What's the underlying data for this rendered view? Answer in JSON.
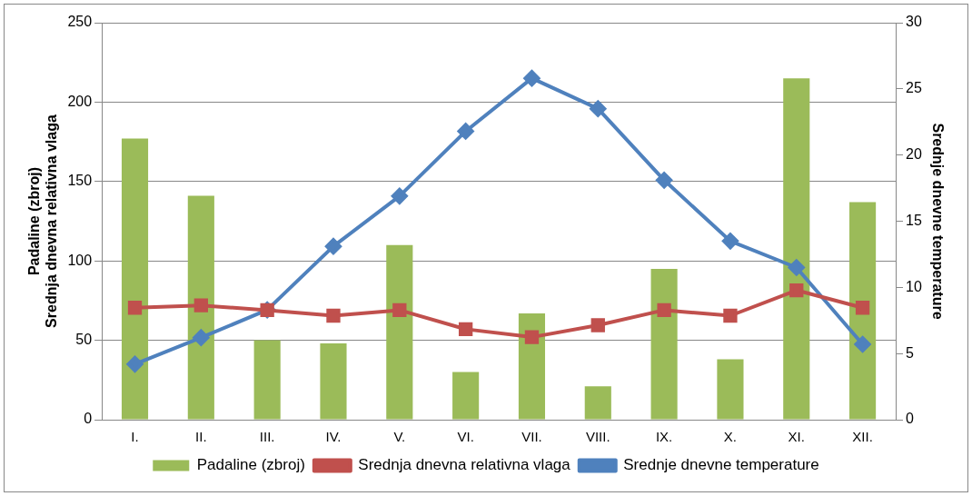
{
  "chart_data": {
    "type": "bar",
    "categories": [
      "I.",
      "II.",
      "III.",
      "IV.",
      "V.",
      "VI.",
      "VII.",
      "VIII.",
      "IX.",
      "X.",
      "XI.",
      "XII."
    ],
    "ylabel": "Padaline (zbroj)\nSrednja dnevna relativna vlaga",
    "y2label": "Srednje dnevne temperature",
    "ylim": [
      0,
      250
    ],
    "yticks": [
      0,
      50,
      100,
      150,
      200,
      250
    ],
    "y2lim": [
      0,
      30
    ],
    "y2ticks": [
      0,
      5,
      10,
      15,
      20,
      25,
      30
    ],
    "grid": "y",
    "legend": "bottom",
    "series": [
      {
        "name": "Padaline (zbroj)",
        "color": "#9bbb59",
        "values": [
          177,
          141,
          50,
          48,
          110,
          30,
          67,
          21,
          95,
          38,
          215,
          137
        ]
      },
      {
        "name": "Srednja dnevna relativna vlaga",
        "type": "line",
        "color": "#c0504d",
        "marker": "square",
        "values": [
          70.5,
          72,
          69,
          65.5,
          69,
          57,
          52,
          59.5,
          69,
          65.5,
          81.5,
          70.5
        ]
      },
      {
        "name": "Srednje dnevne temperature",
        "type": "line",
        "axis": "y2",
        "color": "#4f81bd",
        "marker": "diamond",
        "values": [
          4.2,
          6.2,
          8.3,
          13.1,
          16.9,
          21.8,
          25.8,
          23.5,
          18.1,
          13.5,
          11.5,
          5.7
        ]
      }
    ]
  }
}
